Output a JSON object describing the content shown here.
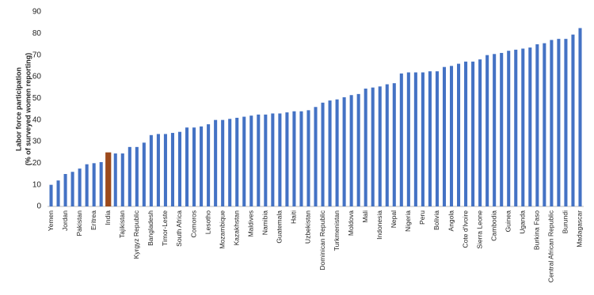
{
  "chart_data": {
    "type": "bar",
    "ylabel": [
      "Labor force participation",
      "(% of surveyed women reporting)"
    ],
    "categories": [
      "Yemen",
      null,
      "Jordan",
      null,
      "Pakistan",
      null,
      "Eritrea",
      null,
      "India",
      null,
      "Tajikistan",
      null,
      "Kyrgyz Republic",
      null,
      "Bangladesh",
      null,
      "Timor-Leste",
      null,
      "South Africa",
      null,
      "Comoros",
      null,
      "Lesotho",
      null,
      "Mozambique",
      null,
      "Kazakhstan",
      null,
      "Maldives",
      null,
      "Namibia",
      null,
      "Guatemala",
      null,
      "Haiti",
      null,
      "Uzbekistan",
      null,
      "Dominican Republic",
      null,
      "Turkmenistan",
      null,
      "Moldova",
      null,
      "Mali",
      null,
      "Indonesia",
      null,
      "Nepal",
      null,
      "Nigeria",
      null,
      "Peru",
      null,
      "Bolivia",
      null,
      "Angola",
      null,
      "Cote d'Ivoire",
      null,
      "Sierra Leone",
      null,
      "Cambodia",
      null,
      "Guinea",
      null,
      "Uganda",
      null,
      "Burkina Faso",
      null,
      "Central African Republic",
      null,
      "Burundi",
      null,
      "Madagascar"
    ],
    "values": [
      10,
      12,
      15,
      16,
      17.5,
      19.5,
      20,
      20.5,
      25,
      24.5,
      24.5,
      27.5,
      27.5,
      29.5,
      33,
      33.5,
      33.5,
      34,
      34.5,
      36.5,
      36.5,
      37,
      38,
      40,
      40,
      40.5,
      41,
      41.5,
      42,
      42.5,
      42.5,
      43,
      43,
      43.5,
      44,
      44,
      44.5,
      46,
      48,
      49,
      49.5,
      50.5,
      51.5,
      52,
      54.5,
      55,
      55.5,
      56.5,
      57,
      61.5,
      62,
      62,
      62,
      62.5,
      62.5,
      64.5,
      65,
      66,
      67,
      67,
      68,
      70,
      70.5,
      71,
      72,
      72.5,
      73,
      73.5,
      75,
      75.5,
      77,
      77.5,
      77.5,
      79.5,
      82.5
    ],
    "color": "#4472c4",
    "highlight": {
      "category": "India",
      "color": "#9c4a1c"
    },
    "ylim": [
      0,
      90
    ],
    "yticks": [
      0,
      10,
      20,
      30,
      40,
      50,
      60,
      70,
      80,
      90
    ],
    "grid": false
  }
}
